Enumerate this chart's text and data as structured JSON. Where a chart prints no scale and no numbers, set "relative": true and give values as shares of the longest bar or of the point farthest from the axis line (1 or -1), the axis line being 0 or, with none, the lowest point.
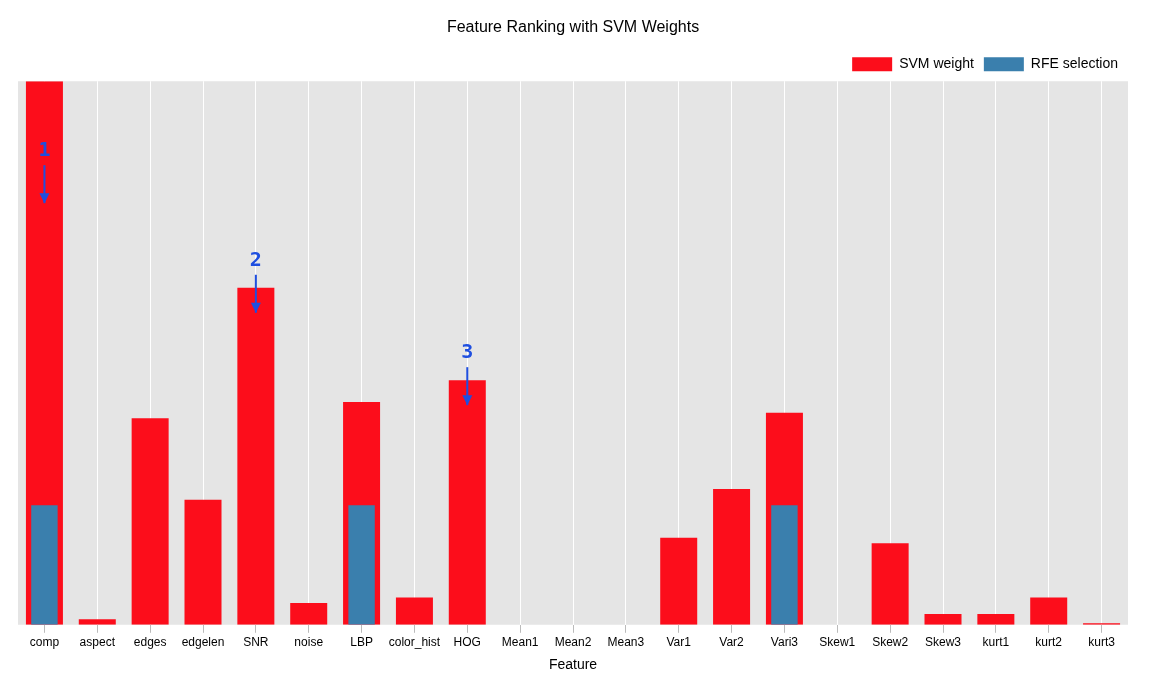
{
  "chart_data": {
    "type": "bar",
    "title": "Feature Ranking with SVM Weights",
    "xlabel": "Feature",
    "relative": true,
    "grid": "x",
    "legend": "top right",
    "categories": [
      "comp",
      "aspect",
      "edges",
      "edgelen",
      "SNR",
      "noise",
      "LBP",
      "color_hist",
      "HOG",
      "Mean1",
      "Mean2",
      "Mean3",
      "Var1",
      "Var2",
      "Vari3",
      "Skew1",
      "Skew2",
      "Skew3",
      "kurt1",
      "kurt2",
      "kurt3"
    ],
    "series": [
      {
        "name": "SVM weight",
        "color": "#fc0d1b",
        "values": [
          1,
          0.01,
          0.38,
          0.23,
          0.62,
          0.04,
          0.41,
          0.05,
          0.45,
          0,
          0,
          0,
          0.16,
          0.25,
          0.39,
          0,
          0.15,
          0.02,
          0.02,
          0.05,
          0.003
        ]
      },
      {
        "name": "RFE selection",
        "color": "#3a7fad",
        "values": [
          0.22,
          null,
          null,
          null,
          null,
          null,
          0.22,
          null,
          null,
          null,
          null,
          null,
          null,
          null,
          0.22,
          null,
          null,
          null,
          null,
          null,
          null
        ]
      }
    ],
    "annotations": [
      "1",
      "2",
      "3"
    ]
  }
}
